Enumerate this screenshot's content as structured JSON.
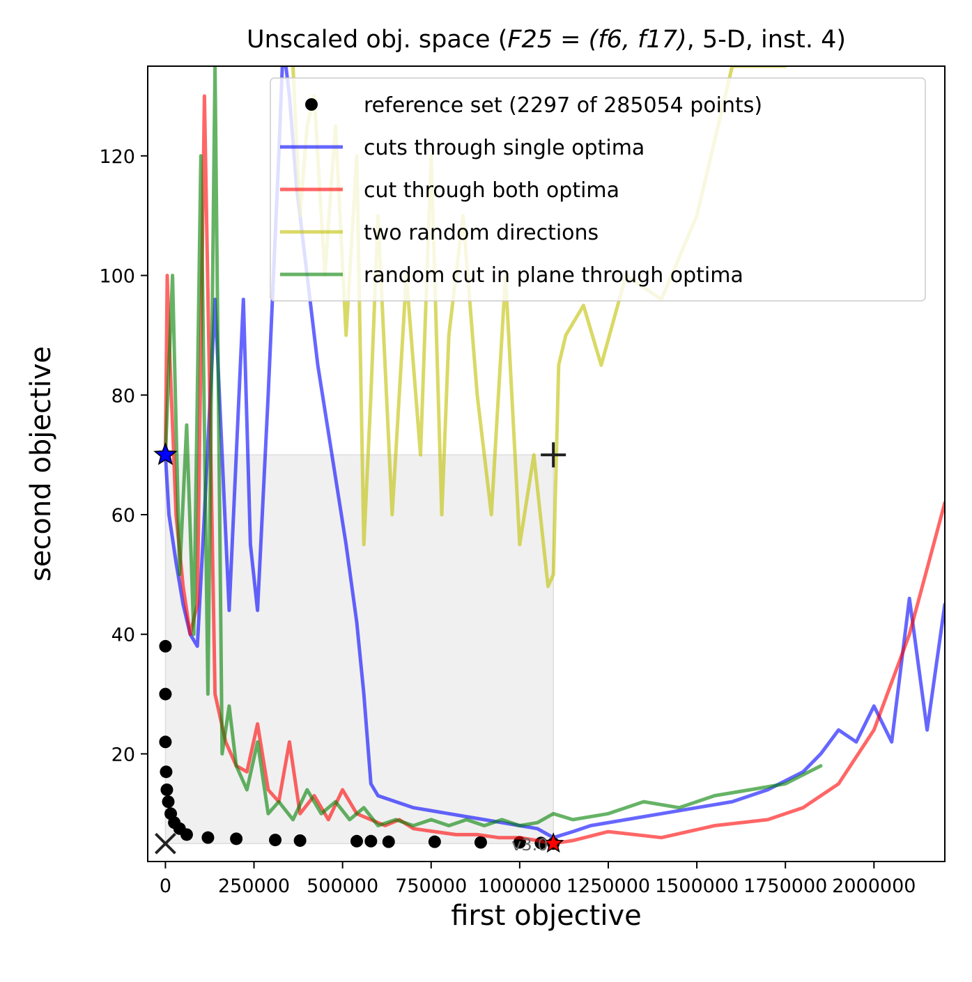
{
  "chart_data": {
    "type": "line",
    "title_prefix": "Unscaled obj. space (",
    "title_math": "F25 = (f6, f17)",
    "title_suffix": ", 5-D, inst. 4)",
    "xlabel": "first objective",
    "ylabel": "second objective",
    "xlim": [
      -50000,
      2200000
    ],
    "ylim": [
      2,
      135
    ],
    "xticks": [
      0,
      250000,
      500000,
      750000,
      1000000,
      1250000,
      1500000,
      1750000,
      2000000
    ],
    "xtick_labels": [
      "0",
      "250000",
      "500000",
      "750000",
      "1000000",
      "1250000",
      "1500000",
      "1750000",
      "2000000"
    ],
    "yticks": [
      20,
      40,
      60,
      80,
      100,
      120
    ],
    "ytick_labels": [
      "20",
      "40",
      "60",
      "80",
      "100",
      "120"
    ],
    "grid": false,
    "legend_position": "upper right",
    "region_of_interest": {
      "x": [
        0,
        1095000
      ],
      "y": [
        5,
        70
      ]
    },
    "ideal_point": [
      0,
      5
    ],
    "nadir_point": [
      1095000,
      70
    ],
    "optimum_f1": [
      0,
      70
    ],
    "optimum_f2": [
      1095000,
      5
    ],
    "version_label": "v3.0",
    "colors": {
      "reference": "#000000",
      "single": "#0000ff",
      "both": "#ff0000",
      "random_dir": "#bfbf00",
      "plane": "#008000",
      "roi_fill": "#f0f0f0"
    },
    "legend": [
      {
        "label": "reference set (2297 of 285054 points)",
        "kind": "dot",
        "color": "#000000"
      },
      {
        "label": "cuts through single optima",
        "kind": "line",
        "color": "#0000ff"
      },
      {
        "label": "cut through both optima",
        "kind": "line",
        "color": "#ff0000"
      },
      {
        "label": "two random directions",
        "kind": "line",
        "color": "#bfbf00"
      },
      {
        "label": "random cut in plane through optima",
        "kind": "line",
        "color": "#008000"
      }
    ],
    "series": [
      {
        "name": "reference set (2297 of 285054 points)",
        "kind": "points",
        "x": [
          0,
          0,
          0,
          2000,
          4000,
          8000,
          15000,
          25000,
          40000,
          60000,
          120000,
          200000,
          310000,
          380000,
          540000,
          580000,
          630000,
          760000,
          890000,
          1000000,
          1060000,
          1095000
        ],
        "y": [
          38,
          30,
          22,
          17,
          14,
          12,
          10,
          8.5,
          7.5,
          6.5,
          6,
          5.8,
          5.6,
          5.5,
          5.4,
          5.4,
          5.3,
          5.3,
          5.2,
          5.2,
          5.1,
          5
        ]
      },
      {
        "name": "cuts through single optima",
        "kind": "line",
        "x": [
          0,
          10000,
          30000,
          50000,
          70000,
          90000,
          110000,
          140000,
          160000,
          180000,
          200000,
          220000,
          240000,
          260000,
          290000,
          320000,
          330000,
          340000,
          350000,
          370000,
          400000,
          430000,
          470000,
          510000,
          540000,
          560000,
          580000,
          600000,
          650000,
          700000,
          750000,
          800000,
          850000,
          900000,
          950000,
          1000000,
          1050000,
          1095000,
          1150000,
          1200000,
          1300000,
          1400000,
          1500000,
          1600000,
          1700000,
          1800000,
          1850000,
          1900000,
          1950000,
          2000000,
          2050000,
          2100000,
          2150000,
          2200000
        ],
        "y": [
          70,
          60,
          52,
          45,
          40,
          38,
          60,
          96,
          70,
          44,
          70,
          96,
          55,
          44,
          80,
          120,
          135,
          135,
          130,
          115,
          100,
          85,
          70,
          55,
          42,
          30,
          15,
          13,
          12,
          11,
          10.5,
          10,
          9.5,
          9,
          8.5,
          8,
          7.5,
          6,
          7,
          8,
          9,
          10,
          11,
          12,
          14,
          17,
          20,
          24,
          22,
          28,
          22,
          46,
          24,
          45
        ]
      },
      {
        "name": "cut through both optima",
        "kind": "line",
        "x": [
          0,
          5000,
          10000,
          20000,
          30000,
          50000,
          70000,
          90000,
          110000,
          140000,
          170000,
          200000,
          230000,
          260000,
          290000,
          320000,
          350000,
          380000,
          420000,
          460000,
          500000,
          540000,
          580000,
          620000,
          660000,
          700000,
          760000,
          820000,
          880000,
          940000,
          1000000,
          1050000,
          1095000,
          1150000,
          1250000,
          1400000,
          1550000,
          1700000,
          1800000,
          1900000,
          2000000,
          2100000,
          2200000
        ],
        "y": [
          70,
          100,
          90,
          75,
          60,
          48,
          40,
          45,
          130,
          30,
          22,
          18,
          17,
          25,
          14,
          12,
          22,
          10,
          13,
          9,
          14,
          10,
          9,
          8,
          9,
          7.5,
          7,
          6.5,
          6.5,
          6,
          6,
          5.5,
          5,
          5.5,
          7,
          6,
          8,
          9,
          11,
          15,
          24,
          40,
          62
        ]
      },
      {
        "name": "two random directions",
        "kind": "line",
        "x": [
          360000,
          380000,
          400000,
          420000,
          450000,
          480000,
          510000,
          540000,
          560000,
          580000,
          600000,
          640000,
          680000,
          720000,
          750000,
          780000,
          800000,
          840000,
          880000,
          920000,
          960000,
          1000000,
          1040000,
          1080000,
          1095000,
          1110000,
          1130000,
          1180000,
          1230000,
          1300000,
          1400000,
          1500000,
          1600000,
          1700000,
          1750000
        ],
        "y": [
          135,
          110,
          125,
          130,
          100,
          125,
          90,
          120,
          55,
          80,
          110,
          60,
          100,
          70,
          120,
          60,
          90,
          110,
          80,
          60,
          100,
          55,
          70,
          48,
          50,
          85,
          90,
          95,
          85,
          100,
          96,
          110,
          135,
          135,
          135
        ]
      },
      {
        "name": "random cut in plane through optima",
        "kind": "line",
        "x": [
          0,
          20000,
          40000,
          60000,
          80000,
          100000,
          120000,
          140000,
          160000,
          180000,
          200000,
          230000,
          260000,
          290000,
          320000,
          360000,
          400000,
          440000,
          480000,
          520000,
          560000,
          600000,
          650000,
          700000,
          750000,
          800000,
          850000,
          900000,
          950000,
          1000000,
          1050000,
          1095000,
          1150000,
          1250000,
          1350000,
          1450000,
          1550000,
          1650000,
          1750000,
          1850000
        ],
        "y": [
          70,
          100,
          50,
          75,
          40,
          120,
          30,
          135,
          20,
          28,
          18,
          14,
          22,
          10,
          12,
          9,
          14,
          10,
          12,
          9,
          11,
          8,
          9,
          8,
          9,
          8,
          9,
          8,
          9,
          8,
          8.5,
          10,
          9,
          10,
          12,
          11,
          13,
          14,
          15,
          18
        ]
      }
    ]
  }
}
